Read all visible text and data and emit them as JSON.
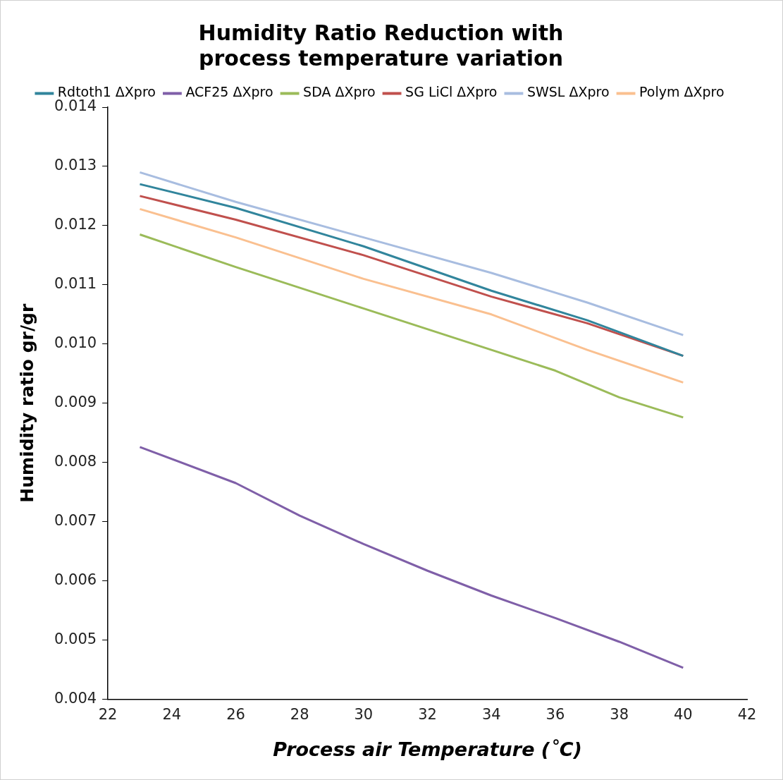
{
  "chart_data": {
    "type": "line",
    "title": "Humidity Ratio Reduction with process temperature variation",
    "xlabel": "Process air Temperature (˚C)",
    "ylabel": "Humidity ratio gr/gr",
    "x": [
      23,
      26,
      30,
      34,
      37,
      40
    ],
    "series": [
      {
        "name": "Rdtoth1 ΔXpro",
        "color": "#31859c",
        "values": [
          0.0127,
          0.0123,
          0.01165,
          0.0109,
          0.0104,
          0.0098
        ]
      },
      {
        "name": "ACF25 ΔXpro",
        "color": "#7f5fa8",
        "x": [
          23,
          26,
          28,
          30,
          32,
          34,
          36,
          38,
          40
        ],
        "values": [
          0.00826,
          0.00765,
          0.0071,
          0.00662,
          0.00617,
          0.00575,
          0.00537,
          0.00497,
          0.00453
        ]
      },
      {
        "name": "SDA ΔXpro",
        "color": "#9bbb59",
        "x": [
          23,
          26,
          30,
          34,
          36,
          38,
          40
        ],
        "values": [
          0.01185,
          0.0113,
          0.0106,
          0.0099,
          0.00955,
          0.0091,
          0.00876
        ]
      },
      {
        "name": "SG LiCl ΔXpro",
        "color": "#c0504d",
        "values": [
          0.0125,
          0.0121,
          0.0115,
          0.0108,
          0.01035,
          0.0098
        ]
      },
      {
        "name": "SWSL ΔXpro",
        "color": "#a8bde0",
        "values": [
          0.0129,
          0.0124,
          0.0118,
          0.0112,
          0.0107,
          0.01015
        ]
      },
      {
        "name": "Polym ΔXpro",
        "color": "#fac090",
        "values": [
          0.01228,
          0.0118,
          0.0111,
          0.0105,
          0.0099,
          0.00935
        ]
      }
    ],
    "xlim": [
      22,
      42
    ],
    "xticks": [
      22,
      24,
      26,
      28,
      30,
      32,
      34,
      36,
      38,
      40,
      42
    ],
    "ylim": [
      0.004,
      0.014
    ],
    "yticks": [
      0.004,
      0.005,
      0.006,
      0.007,
      0.008,
      0.009,
      {
        "value": 0.01,
        "label": "0.010"
      },
      0.011,
      0.012,
      0.013,
      0.014
    ],
    "grid": false,
    "legend": "top",
    "marker": "none",
    "line_style": "solid"
  }
}
